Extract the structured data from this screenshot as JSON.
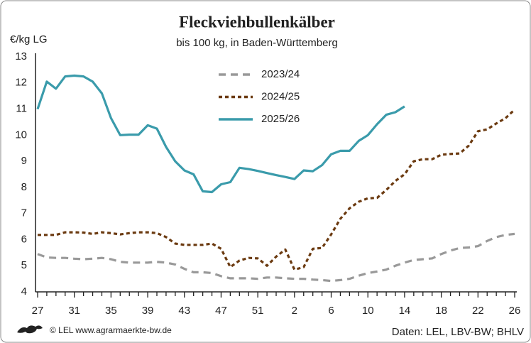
{
  "chart_data": {
    "type": "line",
    "title": "Fleckviehbullenkälber",
    "subtitle": "bis 100 kg, in Baden-Württemberg",
    "y_label": "€/kg LG",
    "footer_left": "© LEL www.agrarmaerkte-bw.de",
    "footer_right": "Daten: LEL, LBV-BW; BHLV",
    "categories": [
      "27",
      null,
      null,
      null,
      "31",
      null,
      null,
      null,
      "35",
      null,
      null,
      null,
      "39",
      null,
      null,
      null,
      "43",
      null,
      null,
      null,
      "47",
      null,
      null,
      null,
      "51",
      null,
      null,
      null,
      "2",
      null,
      null,
      null,
      "6",
      null,
      null,
      null,
      "10",
      null,
      null,
      null,
      "14",
      null,
      null,
      null,
      "18",
      null,
      null,
      null,
      "22",
      null,
      null,
      null,
      "26"
    ],
    "ylim": [
      4,
      13
    ],
    "yticks": [
      4,
      5,
      6,
      7,
      8,
      9,
      10,
      11,
      12,
      13
    ],
    "grid": false,
    "legend": "top-center",
    "series": [
      {
        "name": "2023/24",
        "color": "#999999",
        "dash": "10,7",
        "values": [
          5.45,
          5.32,
          5.3,
          5.3,
          5.27,
          5.25,
          5.27,
          5.3,
          5.25,
          5.15,
          5.12,
          5.12,
          5.12,
          5.15,
          5.12,
          5.05,
          4.88,
          4.75,
          4.75,
          4.72,
          4.6,
          4.52,
          4.52,
          4.52,
          4.5,
          4.55,
          4.55,
          4.52,
          4.5,
          4.5,
          4.47,
          4.45,
          4.42,
          4.45,
          4.5,
          4.62,
          4.72,
          4.78,
          4.85,
          5.0,
          5.12,
          5.22,
          5.25,
          5.28,
          5.45,
          5.58,
          5.68,
          5.7,
          5.75,
          5.95,
          6.1,
          6.18,
          6.22
        ]
      },
      {
        "name": "2024/25",
        "color": "#6b3a10",
        "dash": "5,4",
        "values": [
          6.18,
          6.18,
          6.18,
          6.28,
          6.28,
          6.27,
          6.22,
          6.28,
          6.25,
          6.2,
          6.25,
          6.28,
          6.28,
          6.25,
          6.1,
          5.85,
          5.8,
          5.8,
          5.8,
          5.85,
          5.65,
          4.95,
          5.2,
          5.3,
          5.28,
          5.0,
          5.35,
          5.62,
          4.85,
          4.95,
          5.65,
          5.68,
          6.2,
          6.8,
          7.2,
          7.45,
          7.58,
          7.6,
          7.9,
          8.25,
          8.5,
          9.0,
          9.08,
          9.08,
          9.25,
          9.28,
          9.3,
          9.6,
          10.15,
          10.22,
          10.45,
          10.65,
          10.98
        ]
      },
      {
        "name": "2025/26",
        "color": "#3a9bab",
        "dash": null,
        "values": [
          11.0,
          12.05,
          11.78,
          12.25,
          12.28,
          12.25,
          12.05,
          11.6,
          10.65,
          10.0,
          10.02,
          10.02,
          10.38,
          10.25,
          9.55,
          9.0,
          8.65,
          8.5,
          7.85,
          7.82,
          8.12,
          8.2,
          8.75,
          8.7,
          8.63,
          8.55,
          8.47,
          8.4,
          8.32,
          8.65,
          8.62,
          8.85,
          9.27,
          9.4,
          9.4,
          9.78,
          10.0,
          10.42,
          10.78,
          10.88,
          11.1,
          null,
          null,
          null,
          null,
          null,
          null,
          null,
          null,
          null,
          null,
          null,
          null
        ]
      }
    ]
  }
}
